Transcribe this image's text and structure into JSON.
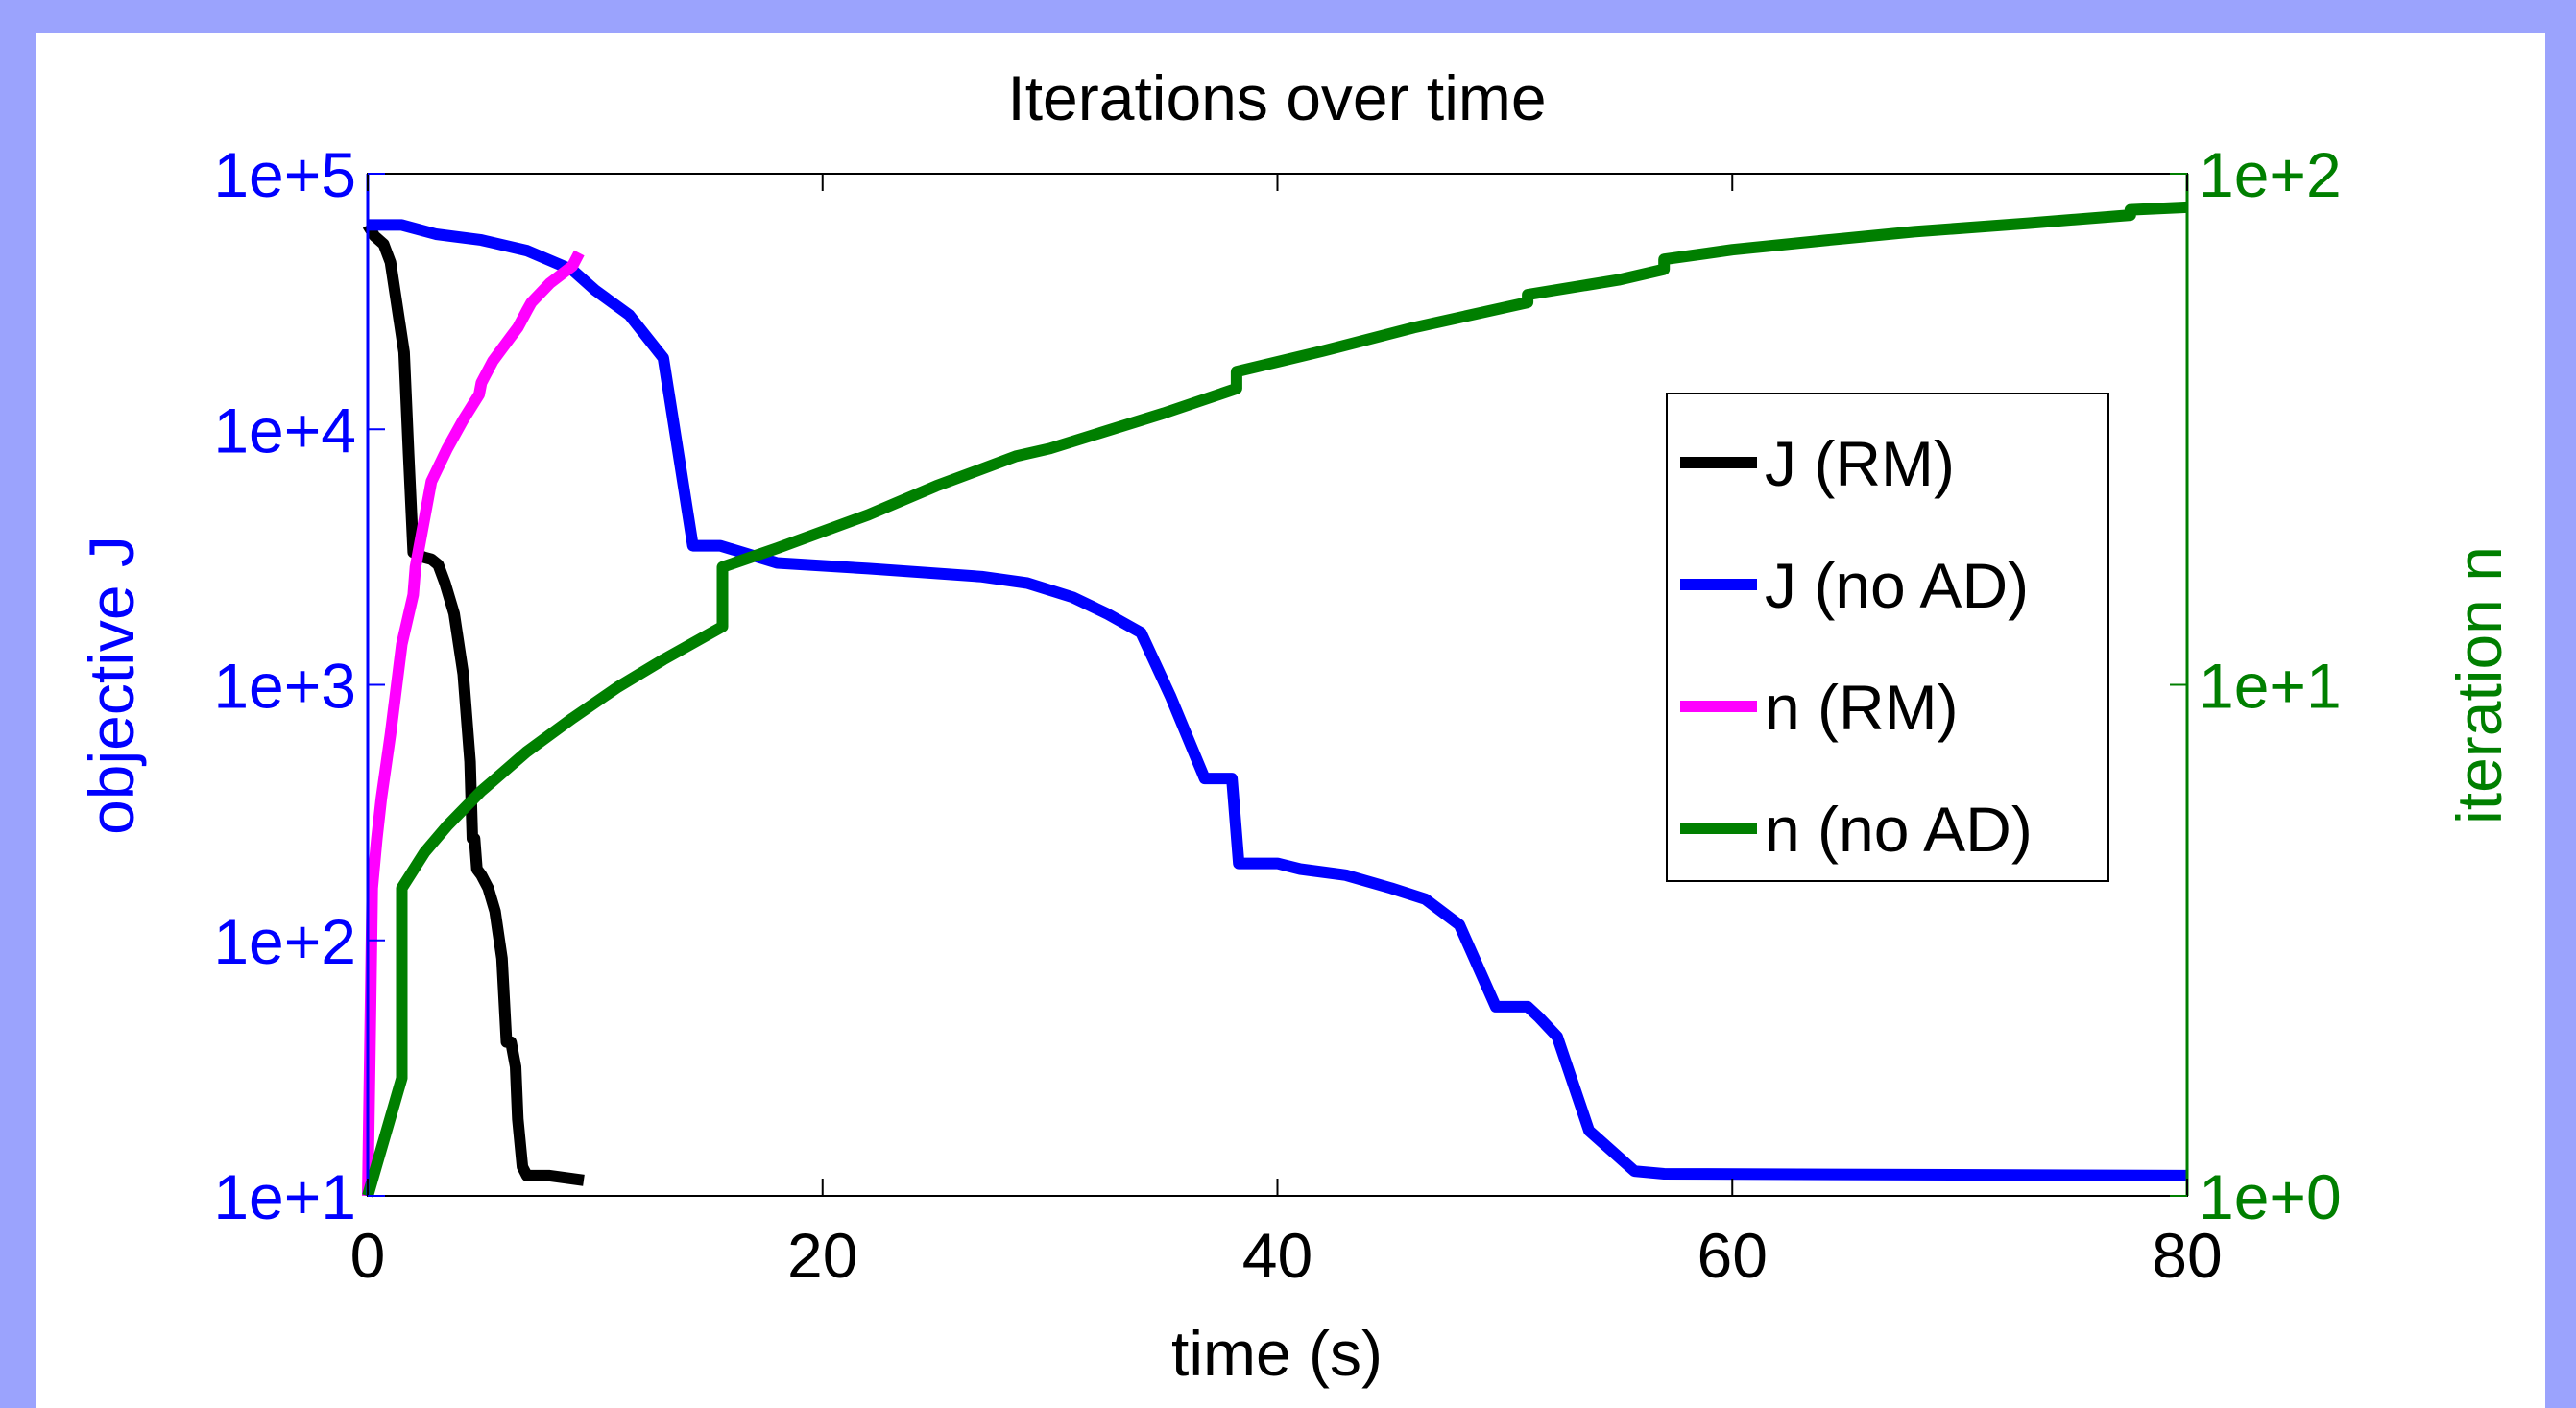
{
  "colors": {
    "frame_background": "#9ba3fd",
    "left_axis": "#0000ff",
    "right_axis": "#007f00",
    "J_RM": "#000000",
    "J_noAD": "#0000ff",
    "n_RM": "#ff00ff",
    "n_noAD": "#007f00"
  },
  "chart_data": {
    "type": "line",
    "title": "Iterations over time",
    "xlabel": "time (s)",
    "ylabel_left": "objective J",
    "ylabel_right": "iteration n",
    "xlim": [
      0,
      80
    ],
    "xticks": [
      0,
      20,
      40,
      60,
      80
    ],
    "xtick_labels": [
      "0",
      "20",
      "40",
      "60",
      "80"
    ],
    "ylim_left": [
      10,
      100000
    ],
    "yscale_left": "log",
    "yticks_left": [
      10,
      100,
      1000,
      10000,
      100000
    ],
    "ytick_labels_left": [
      "1e+1",
      "1e+2",
      "1e+3",
      "1e+4",
      "1e+5"
    ],
    "ylim_right": [
      1,
      100
    ],
    "yscale_right": "log",
    "yticks_right": [
      1,
      10,
      100
    ],
    "ytick_labels_right": [
      "1e+0",
      "1e+1",
      "1e+2"
    ],
    "grid": false,
    "legend": "upper-right",
    "series": [
      {
        "name": "J (RM)",
        "axis": "left",
        "color": "#000000",
        "x": [
          0,
          0.3,
          0.7,
          1.0,
          1.3,
          1.6,
          1.8,
          2.0,
          2.3,
          2.5,
          2.8,
          3.1,
          3.4,
          3.8,
          4.2,
          4.5,
          4.6,
          4.7,
          4.8,
          5.0,
          5.3,
          5.6,
          5.9,
          6.1,
          6.3,
          6.5,
          6.6,
          6.8,
          7.0,
          7.3,
          8.0,
          9.5
        ],
        "y": [
          63000,
          57000,
          53000,
          45000,
          30000,
          20000,
          8000,
          3300,
          3200,
          3150,
          3100,
          2950,
          2500,
          1900,
          1100,
          500,
          250,
          250,
          190,
          180,
          160,
          130,
          85,
          40,
          40,
          32,
          20,
          13,
          12,
          12,
          12,
          11.5
        ]
      },
      {
        "name": "J (no AD)",
        "axis": "left",
        "color": "#0000ff",
        "x": [
          0,
          1.5,
          3,
          5,
          7,
          9,
          10,
          11.5,
          13,
          14.3,
          15.5,
          18,
          22,
          27,
          29,
          31,
          32.5,
          34,
          35.3,
          36.8,
          38,
          38.3,
          40,
          41,
          43,
          45,
          46.5,
          48,
          49.6,
          51,
          51.5,
          52.3,
          53.7,
          55.7,
          57,
          80
        ],
        "y": [
          63000,
          63000,
          58000,
          55000,
          50000,
          42000,
          35000,
          28000,
          19000,
          3500,
          3500,
          3000,
          2850,
          2650,
          2500,
          2200,
          1900,
          1600,
          900,
          430,
          430,
          200,
          200,
          190,
          180,
          160,
          145,
          115,
          55,
          55,
          50,
          42,
          18,
          12.5,
          12.2,
          12
        ]
      },
      {
        "name": "n (RM)",
        "axis": "right",
        "color": "#ff00ff",
        "x": [
          0,
          0.1,
          0.2,
          0.4,
          0.6,
          1.0,
          1.5,
          2.0,
          2.1,
          2.3,
          2.8,
          3.5,
          4.2,
          4.9,
          5.0,
          5.5,
          6.3,
          6.6,
          7.0,
          7.2,
          8.0,
          9.0,
          9.3
        ],
        "y": [
          1,
          2,
          4,
          5,
          6,
          8,
          12,
          15,
          17,
          19,
          25,
          29,
          33,
          37,
          39,
          43,
          48,
          50,
          54,
          56,
          61,
          66,
          70
        ]
      },
      {
        "name": "n (no AD)",
        "axis": "right",
        "color": "#007f00",
        "x": [
          0,
          1.5,
          1.5,
          2.5,
          3.5,
          5,
          7,
          9,
          11,
          13,
          15.6,
          15.6,
          18,
          22,
          25,
          28.5,
          30,
          35,
          38.2,
          38.2,
          42,
          46,
          51,
          51,
          55,
          57,
          57,
          60,
          64,
          68,
          73,
          77.5,
          77.5,
          80
        ],
        "y": [
          1,
          1.7,
          4,
          4.7,
          5.3,
          6.2,
          7.4,
          8.6,
          9.9,
          11.2,
          13,
          17,
          18.5,
          21.5,
          24.5,
          28,
          29,
          34,
          38,
          41,
          45,
          50,
          56,
          58,
          62,
          65,
          68,
          71,
          74,
          77,
          80,
          83,
          85,
          86
        ]
      }
    ]
  }
}
